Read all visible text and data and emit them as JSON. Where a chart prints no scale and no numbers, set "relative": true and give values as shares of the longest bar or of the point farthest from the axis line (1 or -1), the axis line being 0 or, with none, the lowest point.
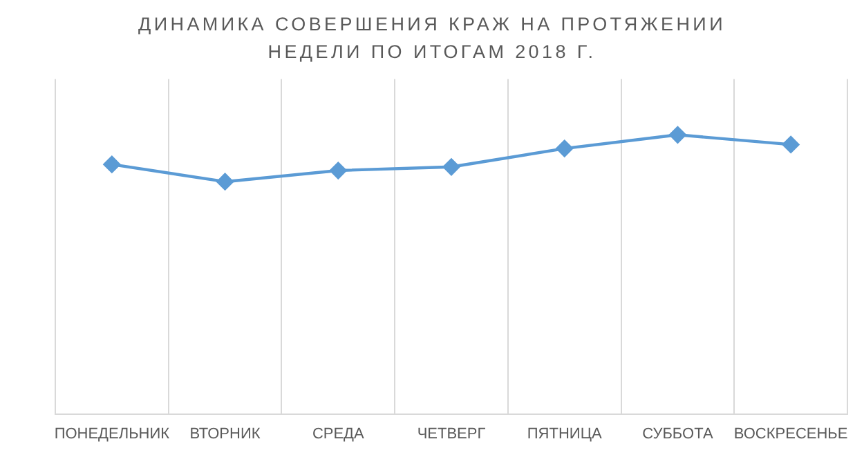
{
  "chart_data": {
    "type": "line",
    "title": "ДИНАМИКА СОВЕРШЕНИЯ КРАЖ НА ПРОТЯЖЕНИИ НЕДЕЛИ ПО ИТОГАМ 2018 Г.",
    "categories": [
      "ПОНЕДЕЛЬНИК",
      "ВТОРНИК",
      "СРЕДА",
      "ЧЕТВЕРГ",
      "ПЯТНИЦА",
      "СУББОТА",
      "ВОСКРЕСЕНЬЕ"
    ],
    "series": [
      {
        "color": "#5b9bd5",
        "values": [
          0.894,
          0.832,
          0.872,
          0.885,
          0.951,
          1,
          0.965
        ]
      }
    ],
    "relative": true,
    "grid": "x",
    "legend": false,
    "marker": "diamond",
    "line_style": "solid"
  }
}
